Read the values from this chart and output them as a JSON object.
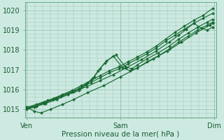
{
  "xlabel": "Pression niveau de la mer( hPa )",
  "bg_color": "#cdeae2",
  "plot_bg_color": "#cdeae2",
  "grid_color": "#9dc8b8",
  "line_color": "#1a6b35",
  "xtick_labels": [
    "Ven",
    "Sam",
    "Dim"
  ],
  "xtick_positions": [
    0.0,
    1.0,
    2.0
  ],
  "ylim": [
    1014.6,
    1020.4
  ],
  "xlim": [
    -0.02,
    2.02
  ],
  "yticks": [
    1015,
    1016,
    1017,
    1018,
    1019,
    1020
  ],
  "lines": [
    {
      "x": [
        0.0,
        0.08,
        0.18,
        0.28,
        0.38,
        0.48,
        0.58,
        0.68,
        0.78,
        0.88,
        0.98,
        1.08,
        1.18,
        1.28,
        1.38,
        1.48,
        1.58,
        1.68,
        1.78,
        1.88,
        1.98
      ],
      "y": [
        1015.1,
        1015.15,
        1015.35,
        1015.55,
        1015.75,
        1015.95,
        1016.2,
        1016.45,
        1016.7,
        1016.95,
        1017.15,
        1017.4,
        1017.65,
        1017.9,
        1018.2,
        1018.55,
        1018.9,
        1019.2,
        1019.5,
        1019.75,
        1020.1
      ]
    },
    {
      "x": [
        0.0,
        0.08,
        0.18,
        0.28,
        0.38,
        0.48,
        0.58,
        0.68,
        0.78,
        0.88,
        0.98,
        1.08,
        1.18,
        1.28,
        1.38,
        1.48,
        1.58,
        1.68,
        1.78,
        1.88,
        1.98
      ],
      "y": [
        1015.05,
        1015.1,
        1015.3,
        1015.5,
        1015.7,
        1015.9,
        1016.1,
        1016.35,
        1016.6,
        1016.85,
        1017.05,
        1017.3,
        1017.55,
        1017.8,
        1018.1,
        1018.45,
        1018.75,
        1019.05,
        1019.35,
        1019.6,
        1019.85
      ]
    },
    {
      "x": [
        0.0,
        0.1,
        0.2,
        0.32,
        0.44,
        0.56,
        0.65,
        0.72,
        0.78,
        0.85,
        0.95,
        1.05,
        1.12,
        1.18,
        1.28,
        1.4,
        1.52,
        1.62,
        1.72,
        1.82,
        1.92,
        1.98
      ],
      "y": [
        1015.05,
        1015.2,
        1015.35,
        1015.55,
        1015.8,
        1016.05,
        1016.35,
        1016.65,
        1017.05,
        1017.45,
        1017.75,
        1017.15,
        1017.05,
        1017.25,
        1017.55,
        1017.85,
        1018.2,
        1018.55,
        1018.85,
        1019.15,
        1019.4,
        1019.55
      ]
    },
    {
      "x": [
        0.0,
        0.1,
        0.2,
        0.32,
        0.44,
        0.56,
        0.63,
        0.7,
        0.76,
        0.83,
        0.92,
        1.02,
        1.1,
        1.18,
        1.28,
        1.4,
        1.52,
        1.62,
        1.72,
        1.82,
        1.92,
        1.98
      ],
      "y": [
        1015.0,
        1015.15,
        1015.3,
        1015.5,
        1015.75,
        1015.95,
        1016.25,
        1016.55,
        1016.95,
        1017.35,
        1017.7,
        1017.1,
        1016.95,
        1017.1,
        1017.4,
        1017.7,
        1018.05,
        1018.4,
        1018.7,
        1019.0,
        1019.25,
        1019.4
      ]
    },
    {
      "x": [
        0.0,
        0.08,
        0.15,
        0.25,
        0.38,
        0.5,
        0.65,
        0.82,
        1.0,
        1.18,
        1.35,
        1.5,
        1.65,
        1.8,
        1.95,
        1.98
      ],
      "y": [
        1015.1,
        1014.9,
        1014.82,
        1015.0,
        1015.25,
        1015.5,
        1015.85,
        1016.2,
        1016.65,
        1017.1,
        1017.55,
        1017.95,
        1018.4,
        1018.85,
        1019.25,
        1019.35
      ]
    },
    {
      "x": [
        0.0,
        0.1,
        0.22,
        0.36,
        0.5,
        0.64,
        0.78,
        0.92,
        1.06,
        1.22,
        1.38,
        1.52,
        1.62,
        1.7,
        1.78,
        1.86,
        1.92,
        1.98
      ],
      "y": [
        1015.1,
        1015.25,
        1015.45,
        1015.65,
        1015.9,
        1016.15,
        1016.45,
        1016.75,
        1017.1,
        1017.5,
        1017.95,
        1018.4,
        1018.75,
        1019.05,
        1019.35,
        1019.1,
        1019.0,
        1019.15
      ]
    }
  ]
}
